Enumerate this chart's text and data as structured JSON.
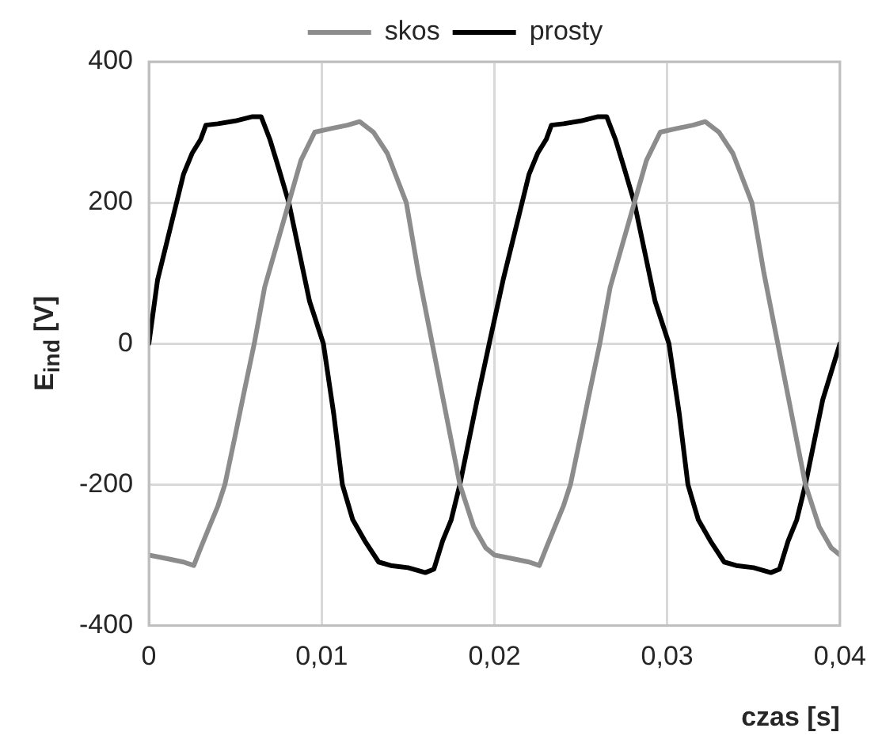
{
  "chart_data": {
    "type": "line",
    "xlabel": "czas [s]",
    "ylabel": "E$_{ind}$ [V]",
    "xlim": [
      0,
      0.04
    ],
    "xticks": [
      0,
      {
        "value": 0.01,
        "label": "0,01"
      },
      {
        "value": 0.02,
        "label": "0,02"
      },
      {
        "value": 0.03,
        "label": "0,03"
      },
      {
        "value": 0.04,
        "label": "0,04"
      }
    ],
    "ylim": [
      -400,
      400
    ],
    "yticks": [
      -400,
      -200,
      0,
      200,
      400
    ],
    "grid": true,
    "legend": "top",
    "marker": "none",
    "line_style": "solid",
    "series": [
      {
        "name": "skos",
        "color": "#8c8c8c",
        "x": [
          0,
          0.001,
          0.002,
          0.0026,
          0.003,
          0.0035,
          0.004,
          0.0044,
          0.005,
          0.0055,
          0.0061,
          0.0067,
          0.0074,
          0.0081,
          0.0088,
          0.0096,
          0.0105,
          0.0115,
          0.0122,
          0.013,
          0.0138,
          0.0149,
          0.0156,
          0.0164,
          0.0172,
          0.018,
          0.0188,
          0.0195,
          0.02,
          0.021,
          0.022,
          0.0226,
          0.023,
          0.0235,
          0.024,
          0.0244,
          0.025,
          0.0255,
          0.0261,
          0.0267,
          0.0274,
          0.0281,
          0.0288,
          0.0296,
          0.0305,
          0.0315,
          0.0322,
          0.033,
          0.0338,
          0.0349,
          0.0356,
          0.0364,
          0.0372,
          0.038,
          0.0388,
          0.0395,
          0.04
        ],
        "values": [
          -300,
          -305,
          -310,
          -315,
          -290,
          -260,
          -230,
          -200,
          -130,
          -70,
          0,
          80,
          140,
          200,
          260,
          300,
          305,
          310,
          315,
          300,
          270,
          200,
          100,
          0,
          -100,
          -200,
          -260,
          -290,
          -300,
          -305,
          -310,
          -315,
          -290,
          -260,
          -230,
          -200,
          -130,
          -70,
          0,
          80,
          140,
          200,
          260,
          300,
          305,
          310,
          315,
          300,
          270,
          200,
          100,
          0,
          -100,
          -200,
          -260,
          -290,
          -300
        ]
      },
      {
        "name": "prosty",
        "color": "#000000",
        "x": [
          0,
          0.0005,
          0.001,
          0.0016,
          0.002,
          0.0025,
          0.003,
          0.0033,
          0.004,
          0.005,
          0.006,
          0.0065,
          0.007,
          0.0075,
          0.0081,
          0.0087,
          0.0093,
          0.0101,
          0.0107,
          0.0112,
          0.0118,
          0.0125,
          0.0133,
          0.014,
          0.015,
          0.016,
          0.0165,
          0.017,
          0.0175,
          0.018,
          0.0185,
          0.019,
          0.0197,
          0.0205,
          0.021,
          0.0216,
          0.022,
          0.0225,
          0.023,
          0.0233,
          0.024,
          0.025,
          0.026,
          0.0265,
          0.027,
          0.0275,
          0.0281,
          0.0287,
          0.0293,
          0.0301,
          0.0307,
          0.0312,
          0.0318,
          0.0325,
          0.0333,
          0.034,
          0.035,
          0.036,
          0.0365,
          0.037,
          0.0375,
          0.038,
          0.0385,
          0.039,
          0.04
        ],
        "values": [
          0,
          90,
          140,
          200,
          240,
          270,
          290,
          310,
          312,
          316,
          322,
          322,
          290,
          250,
          200,
          130,
          60,
          0,
          -100,
          -200,
          -250,
          -280,
          -310,
          -315,
          -318,
          -325,
          -320,
          -280,
          -250,
          -200,
          -140,
          -80,
          0,
          90,
          140,
          200,
          240,
          270,
          290,
          310,
          312,
          316,
          322,
          322,
          290,
          250,
          200,
          130,
          60,
          0,
          -100,
          -200,
          -250,
          -280,
          -310,
          -315,
          -318,
          -325,
          -320,
          -280,
          -250,
          -200,
          -140,
          -80,
          0
        ]
      }
    ]
  }
}
